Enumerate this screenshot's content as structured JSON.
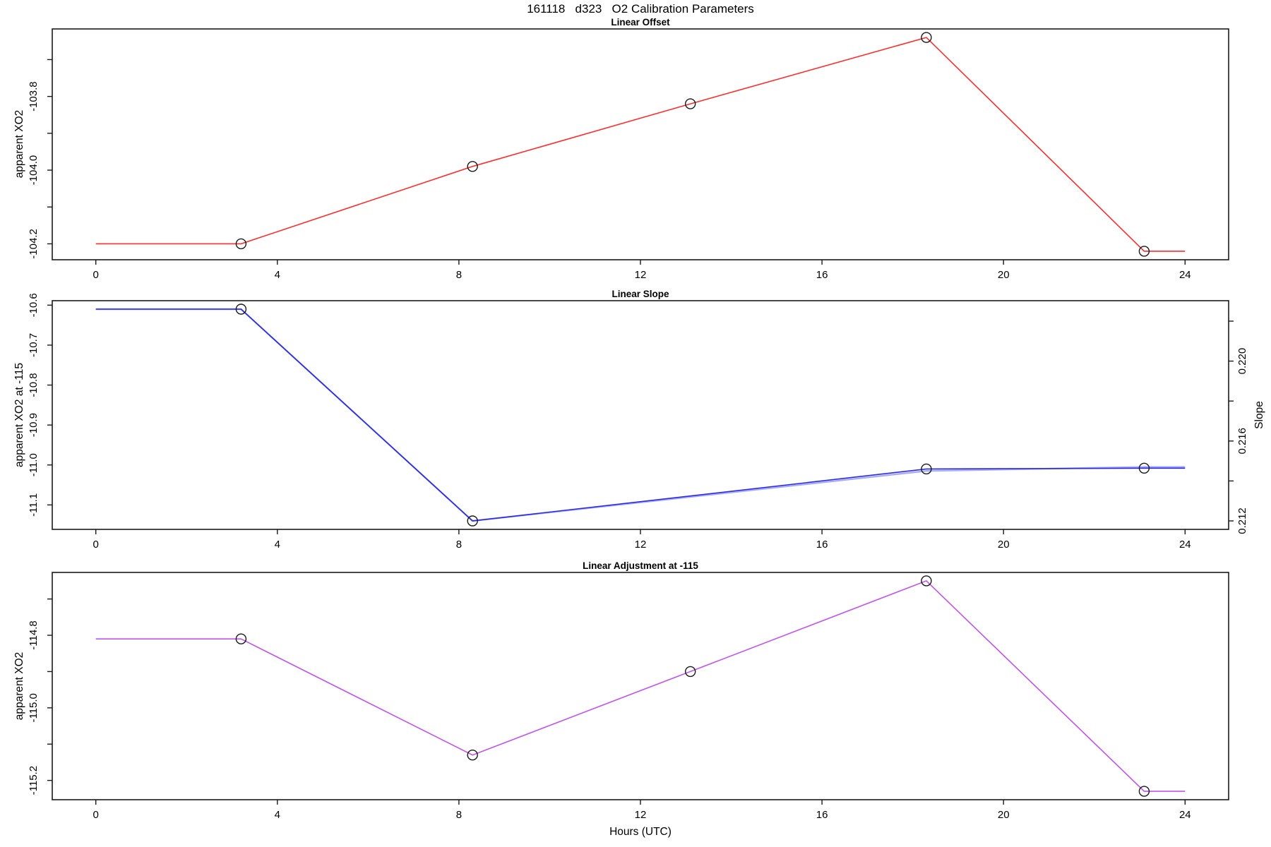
{
  "header": {
    "title": "161118   d323   O2 Calibration Parameters"
  },
  "xlabel": "Hours (UTC)",
  "colors": {
    "offset_line": "#ff2d2d",
    "xo2_line": "#2b2be6",
    "slope_line": "#a9acf4",
    "adjustment_line": "#c454ec",
    "marker_stroke": "#1a1a1a",
    "axis": "#1a1a1a"
  },
  "chart_data": [
    {
      "type": "line",
      "title": "Linear Offset",
      "ylabel": "apparent XO2",
      "x": [
        3.2,
        8.3,
        13.1,
        18.3,
        23.1
      ],
      "values": [
        -104.2,
        -103.99,
        -103.82,
        -103.64,
        -104.22
      ],
      "xlim": [
        0,
        24
      ],
      "xticks": [
        0,
        4,
        8,
        12,
        16,
        20,
        24
      ],
      "xtick_labels": [
        "0",
        "4",
        "8",
        "12",
        "16",
        "20",
        "24"
      ],
      "yticks": [
        -104.2,
        -104.1,
        -104.0,
        -103.9,
        -103.8,
        -103.7
      ],
      "ytick_labels": [
        "-104.2",
        "",
        "-104.0",
        "",
        "-103.8",
        ""
      ],
      "color_key": "offset_line",
      "extend_flat_to_xlim": true,
      "grid": false,
      "legend": null
    },
    {
      "type": "line",
      "title": "Linear Slope",
      "ylabel": "apparent XO2 at -115",
      "ylabel_right": "Slope",
      "x": [
        3.2,
        8.3,
        18.3,
        23.1
      ],
      "values": [
        -10.61,
        -11.14,
        -11.01,
        -11.008
      ],
      "series_right": {
        "name": "Slope",
        "values": [
          0.2226,
          0.212,
          0.2145,
          0.2147
        ],
        "color_key": "slope_line"
      },
      "xlim": [
        0,
        24
      ],
      "xticks": [
        0,
        4,
        8,
        12,
        16,
        20,
        24
      ],
      "xtick_labels": [
        "0",
        "4",
        "8",
        "12",
        "16",
        "20",
        "24"
      ],
      "yticks": [
        -11.1,
        -11.0,
        -10.9,
        -10.8,
        -10.7,
        -10.6
      ],
      "ytick_labels": [
        "-11.1",
        "-11.0",
        "-10.9",
        "-10.8",
        "-10.7",
        "-10.6"
      ],
      "yticks_right": [
        0.212,
        0.214,
        0.216,
        0.218,
        0.22,
        0.222
      ],
      "ytick_labels_right": [
        "0.212",
        "",
        "0.216",
        "",
        "0.220",
        ""
      ],
      "color_key": "xo2_line",
      "extend_flat_to_xlim": true,
      "grid": false,
      "legend": null
    },
    {
      "type": "line",
      "title": "Linear Adjustment at -115",
      "ylabel": "apparent XO2",
      "x": [
        3.2,
        8.3,
        13.1,
        18.3,
        23.1
      ],
      "values": [
        -114.81,
        -115.13,
        -114.9,
        -114.65,
        -115.23
      ],
      "xlim": [
        0,
        24
      ],
      "xticks": [
        0,
        4,
        8,
        12,
        16,
        20,
        24
      ],
      "xtick_labels": [
        "0",
        "4",
        "8",
        "12",
        "16",
        "20",
        "24"
      ],
      "yticks": [
        -115.2,
        -115.1,
        -115.0,
        -114.9,
        -114.8,
        -114.7
      ],
      "ytick_labels": [
        "-115.2",
        "",
        "-115.0",
        "",
        "-114.8",
        ""
      ],
      "color_key": "adjustment_line",
      "extend_flat_to_xlim": true,
      "grid": false,
      "legend": null
    }
  ]
}
